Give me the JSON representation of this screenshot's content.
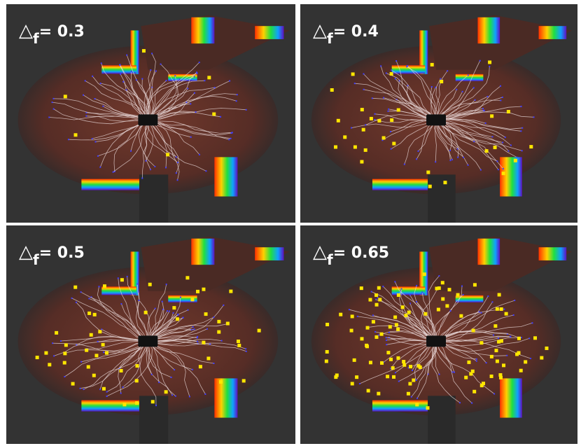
{
  "panels": [
    {
      "symbol": "△",
      "subscript": "f",
      "text": "= 0.3"
    },
    {
      "symbol": "△",
      "subscript": "f",
      "text": "= 0.4"
    },
    {
      "symbol": "△",
      "subscript": "f",
      "text": "= 0.5"
    },
    {
      "symbol": "△",
      "subscript": "f",
      "text": "= 0.65"
    }
  ]
}
